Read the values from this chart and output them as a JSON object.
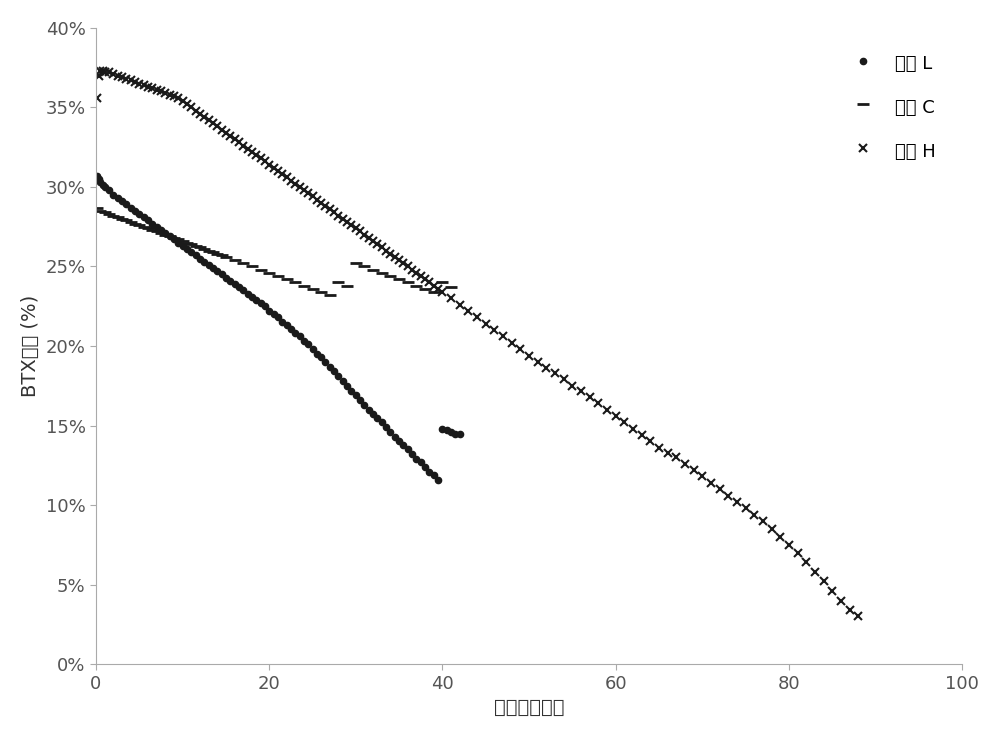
{
  "title": "",
  "xlabel": "时间（小时）",
  "ylabel": "BTX收率 (%)",
  "xlim": [
    0,
    100
  ],
  "ylim": [
    0,
    0.4
  ],
  "yticks": [
    0.0,
    0.05,
    0.1,
    0.15,
    0.2,
    0.25,
    0.3,
    0.35,
    0.4
  ],
  "ytick_labels": [
    "0%",
    "5%",
    "10%",
    "15%",
    "20%",
    "25%",
    "30%",
    "35%",
    "40%"
  ],
  "xticks": [
    0,
    20,
    40,
    60,
    80,
    100
  ],
  "legend_labels": [
    "样品 L",
    "样品 C",
    "样品 H"
  ],
  "color": "#333333",
  "background_color": "#ffffff",
  "sample_L": {
    "x": [
      0.1,
      0.3,
      0.5,
      0.8,
      1.0,
      1.5,
      2.0,
      2.5,
      3.0,
      3.5,
      4.0,
      4.5,
      5.0,
      5.5,
      6.0,
      6.5,
      7.0,
      7.5,
      8.0,
      8.5,
      9.0,
      9.5,
      10.0,
      10.5,
      11.0,
      11.5,
      12.0,
      12.5,
      13.0,
      13.5,
      14.0,
      14.5,
      15.0,
      15.5,
      16.0,
      16.5,
      17.0,
      17.5,
      18.0,
      18.5,
      19.0,
      19.5,
      20.0,
      20.5,
      21.0,
      21.5,
      22.0,
      22.5,
      23.0,
      23.5,
      24.0,
      24.5,
      25.0,
      25.5,
      26.0,
      26.5,
      27.0,
      27.5,
      28.0,
      28.5,
      29.0,
      29.5,
      30.0,
      30.5,
      31.0,
      31.5,
      32.0,
      32.5,
      33.0,
      33.5,
      34.0,
      34.5,
      35.0,
      35.5,
      36.0,
      36.5,
      37.0,
      37.5,
      38.0,
      38.5,
      39.0,
      39.5,
      40.0,
      40.5,
      41.0,
      41.5,
      42.0
    ],
    "y": [
      0.307,
      0.305,
      0.303,
      0.301,
      0.3,
      0.298,
      0.295,
      0.293,
      0.291,
      0.289,
      0.287,
      0.285,
      0.283,
      0.281,
      0.279,
      0.277,
      0.275,
      0.273,
      0.271,
      0.269,
      0.267,
      0.265,
      0.263,
      0.261,
      0.259,
      0.257,
      0.255,
      0.253,
      0.251,
      0.249,
      0.247,
      0.245,
      0.243,
      0.241,
      0.239,
      0.237,
      0.235,
      0.233,
      0.231,
      0.229,
      0.227,
      0.225,
      0.222,
      0.22,
      0.218,
      0.215,
      0.213,
      0.211,
      0.208,
      0.206,
      0.203,
      0.201,
      0.198,
      0.195,
      0.193,
      0.19,
      0.187,
      0.184,
      0.181,
      0.178,
      0.175,
      0.172,
      0.169,
      0.166,
      0.163,
      0.16,
      0.157,
      0.155,
      0.152,
      0.149,
      0.146,
      0.143,
      0.14,
      0.138,
      0.135,
      0.132,
      0.129,
      0.127,
      0.124,
      0.121,
      0.119,
      0.116,
      0.148,
      0.147,
      0.146,
      0.145,
      0.145
    ]
  },
  "sample_C": {
    "x": [
      0.1,
      0.5,
      1.0,
      1.5,
      2.0,
      2.5,
      3.0,
      3.5,
      4.0,
      4.5,
      5.0,
      5.5,
      6.0,
      6.5,
      7.0,
      7.5,
      8.0,
      8.5,
      9.0,
      9.5,
      10.0,
      10.5,
      11.0,
      11.5,
      12.0,
      12.5,
      13.0,
      13.5,
      14.0,
      14.5,
      15.0,
      16.0,
      17.0,
      18.0,
      19.0,
      20.0,
      21.0,
      22.0,
      23.0,
      24.0,
      25.0,
      26.0,
      27.0,
      28.0,
      29.0,
      30.0,
      31.0,
      32.0,
      33.0,
      34.0,
      35.0,
      36.0,
      37.0,
      38.0,
      39.0,
      40.0,
      41.0
    ],
    "y": [
      0.287,
      0.285,
      0.284,
      0.283,
      0.282,
      0.281,
      0.28,
      0.279,
      0.278,
      0.277,
      0.276,
      0.275,
      0.274,
      0.273,
      0.272,
      0.271,
      0.27,
      0.269,
      0.268,
      0.267,
      0.266,
      0.265,
      0.264,
      0.263,
      0.262,
      0.261,
      0.26,
      0.259,
      0.258,
      0.257,
      0.256,
      0.254,
      0.252,
      0.25,
      0.248,
      0.246,
      0.244,
      0.242,
      0.24,
      0.238,
      0.236,
      0.234,
      0.232,
      0.24,
      0.238,
      0.252,
      0.25,
      0.248,
      0.246,
      0.244,
      0.242,
      0.24,
      0.238,
      0.236,
      0.234,
      0.24,
      0.237
    ]
  },
  "sample_H": {
    "x": [
      0.1,
      0.3,
      0.5,
      0.8,
      1.0,
      1.5,
      2.0,
      2.5,
      3.0,
      3.5,
      4.0,
      4.5,
      5.0,
      5.5,
      6.0,
      6.5,
      7.0,
      7.5,
      8.0,
      8.5,
      9.0,
      9.5,
      10.0,
      10.5,
      11.0,
      11.5,
      12.0,
      12.5,
      13.0,
      13.5,
      14.0,
      14.5,
      15.0,
      15.5,
      16.0,
      16.5,
      17.0,
      17.5,
      18.0,
      18.5,
      19.0,
      19.5,
      20.0,
      20.5,
      21.0,
      21.5,
      22.0,
      22.5,
      23.0,
      23.5,
      24.0,
      24.5,
      25.0,
      25.5,
      26.0,
      26.5,
      27.0,
      27.5,
      28.0,
      28.5,
      29.0,
      29.5,
      30.0,
      30.5,
      31.0,
      31.5,
      32.0,
      32.5,
      33.0,
      33.5,
      34.0,
      34.5,
      35.0,
      35.5,
      36.0,
      36.5,
      37.0,
      37.5,
      38.0,
      38.5,
      39.0,
      39.5,
      40.0,
      41.0,
      42.0,
      43.0,
      44.0,
      45.0,
      46.0,
      47.0,
      48.0,
      49.0,
      50.0,
      51.0,
      52.0,
      53.0,
      54.0,
      55.0,
      56.0,
      57.0,
      58.0,
      59.0,
      60.0,
      61.0,
      62.0,
      63.0,
      64.0,
      65.0,
      66.0,
      67.0,
      68.0,
      69.0,
      70.0,
      71.0,
      72.0,
      73.0,
      74.0,
      75.0,
      76.0,
      77.0,
      78.0,
      79.0,
      80.0,
      81.0,
      82.0,
      83.0,
      84.0,
      85.0,
      86.0,
      87.0,
      88.0
    ],
    "y": [
      0.356,
      0.37,
      0.373,
      0.373,
      0.372,
      0.372,
      0.371,
      0.37,
      0.369,
      0.368,
      0.367,
      0.366,
      0.365,
      0.364,
      0.363,
      0.362,
      0.361,
      0.36,
      0.359,
      0.358,
      0.357,
      0.356,
      0.354,
      0.352,
      0.35,
      0.348,
      0.346,
      0.344,
      0.342,
      0.34,
      0.338,
      0.336,
      0.334,
      0.332,
      0.33,
      0.328,
      0.326,
      0.324,
      0.322,
      0.32,
      0.318,
      0.316,
      0.314,
      0.312,
      0.31,
      0.308,
      0.306,
      0.304,
      0.302,
      0.3,
      0.298,
      0.296,
      0.294,
      0.292,
      0.29,
      0.288,
      0.286,
      0.284,
      0.282,
      0.28,
      0.278,
      0.276,
      0.274,
      0.272,
      0.27,
      0.268,
      0.266,
      0.264,
      0.262,
      0.26,
      0.258,
      0.256,
      0.254,
      0.252,
      0.25,
      0.248,
      0.246,
      0.244,
      0.242,
      0.24,
      0.238,
      0.236,
      0.234,
      0.23,
      0.226,
      0.222,
      0.218,
      0.214,
      0.21,
      0.206,
      0.202,
      0.198,
      0.194,
      0.19,
      0.186,
      0.183,
      0.179,
      0.175,
      0.172,
      0.168,
      0.164,
      0.16,
      0.156,
      0.152,
      0.148,
      0.144,
      0.14,
      0.136,
      0.133,
      0.13,
      0.126,
      0.122,
      0.118,
      0.114,
      0.11,
      0.106,
      0.102,
      0.098,
      0.094,
      0.09,
      0.085,
      0.08,
      0.075,
      0.07,
      0.064,
      0.058,
      0.052,
      0.046,
      0.04,
      0.034,
      0.03
    ]
  }
}
